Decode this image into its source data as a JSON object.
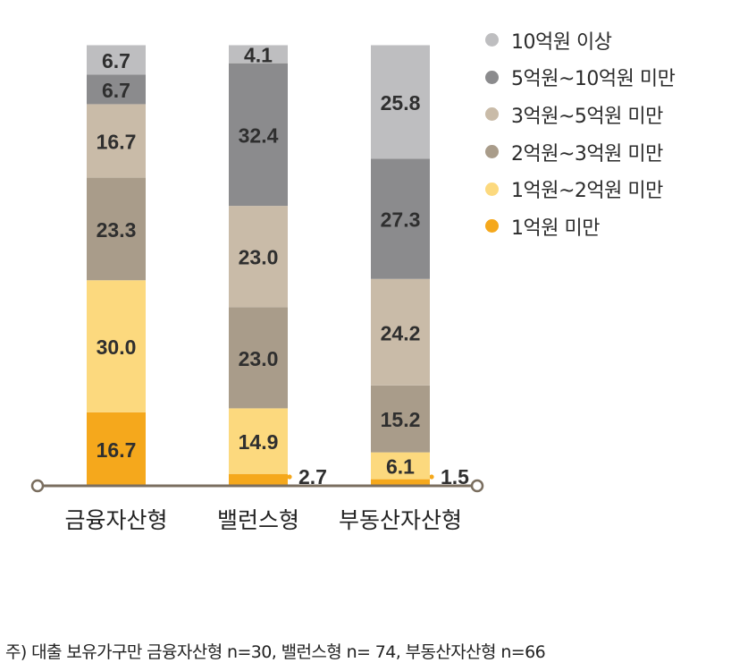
{
  "chart_data": {
    "type": "bar",
    "stacked": true,
    "percent": true,
    "categories": [
      "금융자산형",
      "밸런스형",
      "부동산자산형"
    ],
    "series": [
      {
        "name": "1억원 미만",
        "color": "#F5A81C",
        "values": [
          16.7,
          2.7,
          1.5
        ]
      },
      {
        "name": "1억원~2억원 미만",
        "color": "#FCD97E",
        "values": [
          30.0,
          14.9,
          6.1
        ]
      },
      {
        "name": "2억원~3억원 미만",
        "color": "#A99C8A",
        "values": [
          23.3,
          23.0,
          15.2
        ]
      },
      {
        "name": "3억원~5억원 미만",
        "color": "#C9BBA8",
        "values": [
          16.7,
          23.0,
          24.2
        ]
      },
      {
        "name": "5억원~10억원 미만",
        "color": "#8B8B8D",
        "values": [
          6.7,
          32.4,
          27.3
        ]
      },
      {
        "name": "10억원 이상",
        "color": "#BEBEC0",
        "values": [
          6.7,
          4.1,
          25.8
        ]
      }
    ],
    "value_labels": [
      [
        "16.7",
        "30.0",
        "23.3",
        "16.7",
        "6.7",
        "6.7"
      ],
      [
        "2.7",
        "14.9",
        "23.0",
        "23.0",
        "32.4",
        "4.1"
      ],
      [
        "1.5",
        "6.1",
        "15.2",
        "24.2",
        "27.3",
        "25.8"
      ]
    ],
    "legend_position": "top-right",
    "axis_color": "#7a6e5f"
  },
  "note": "주) 대출 보유가구만 금융자산형 n=30, 밸런스형 n= 74, 부동산자산형 n=66"
}
